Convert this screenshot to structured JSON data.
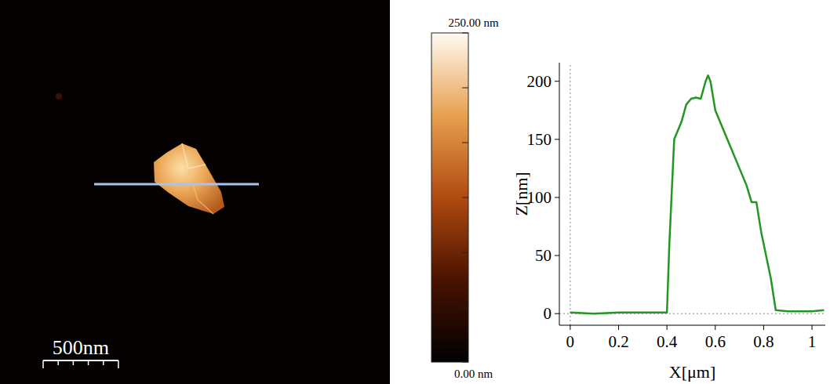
{
  "chart_data": [
    {
      "type": "image",
      "scale_bar": {
        "value": 500,
        "label": "500nm"
      },
      "image_width_nm": 2590,
      "colorbar": {
        "range": [
          0,
          250
        ],
        "ticks": [
          {
            "value": 0,
            "label": "0.00 nm"
          },
          {
            "value": 250,
            "label": "250.00 nm"
          }
        ]
      }
    },
    {
      "type": "line",
      "x_label": "X[μm]",
      "y_label": "Z[nm]",
      "color": "#239623",
      "x": [
        0,
        0.1,
        0.2,
        0.3,
        0.39,
        0.4,
        0.41,
        0.43,
        0.46,
        0.48,
        0.5,
        0.52,
        0.54,
        0.56,
        0.57,
        0.58,
        0.6,
        0.63,
        0.66,
        0.7,
        0.73,
        0.75,
        0.77,
        0.79,
        0.81,
        0.83,
        0.85,
        0.9,
        1.0,
        1.05
      ],
      "values": [
        1,
        0,
        1,
        1,
        1,
        1,
        60,
        150,
        165,
        180,
        185,
        186,
        185,
        200,
        205,
        200,
        175,
        160,
        145,
        125,
        110,
        96,
        96,
        70,
        50,
        30,
        3,
        2,
        2,
        3
      ],
      "xlim": [
        -0.045,
        1.055
      ],
      "ylim": [
        -10,
        216
      ],
      "xticks": [
        0,
        0.2,
        0.4,
        0.6,
        0.8,
        1
      ],
      "yticks": [
        0,
        50,
        100,
        150,
        200
      ]
    }
  ]
}
